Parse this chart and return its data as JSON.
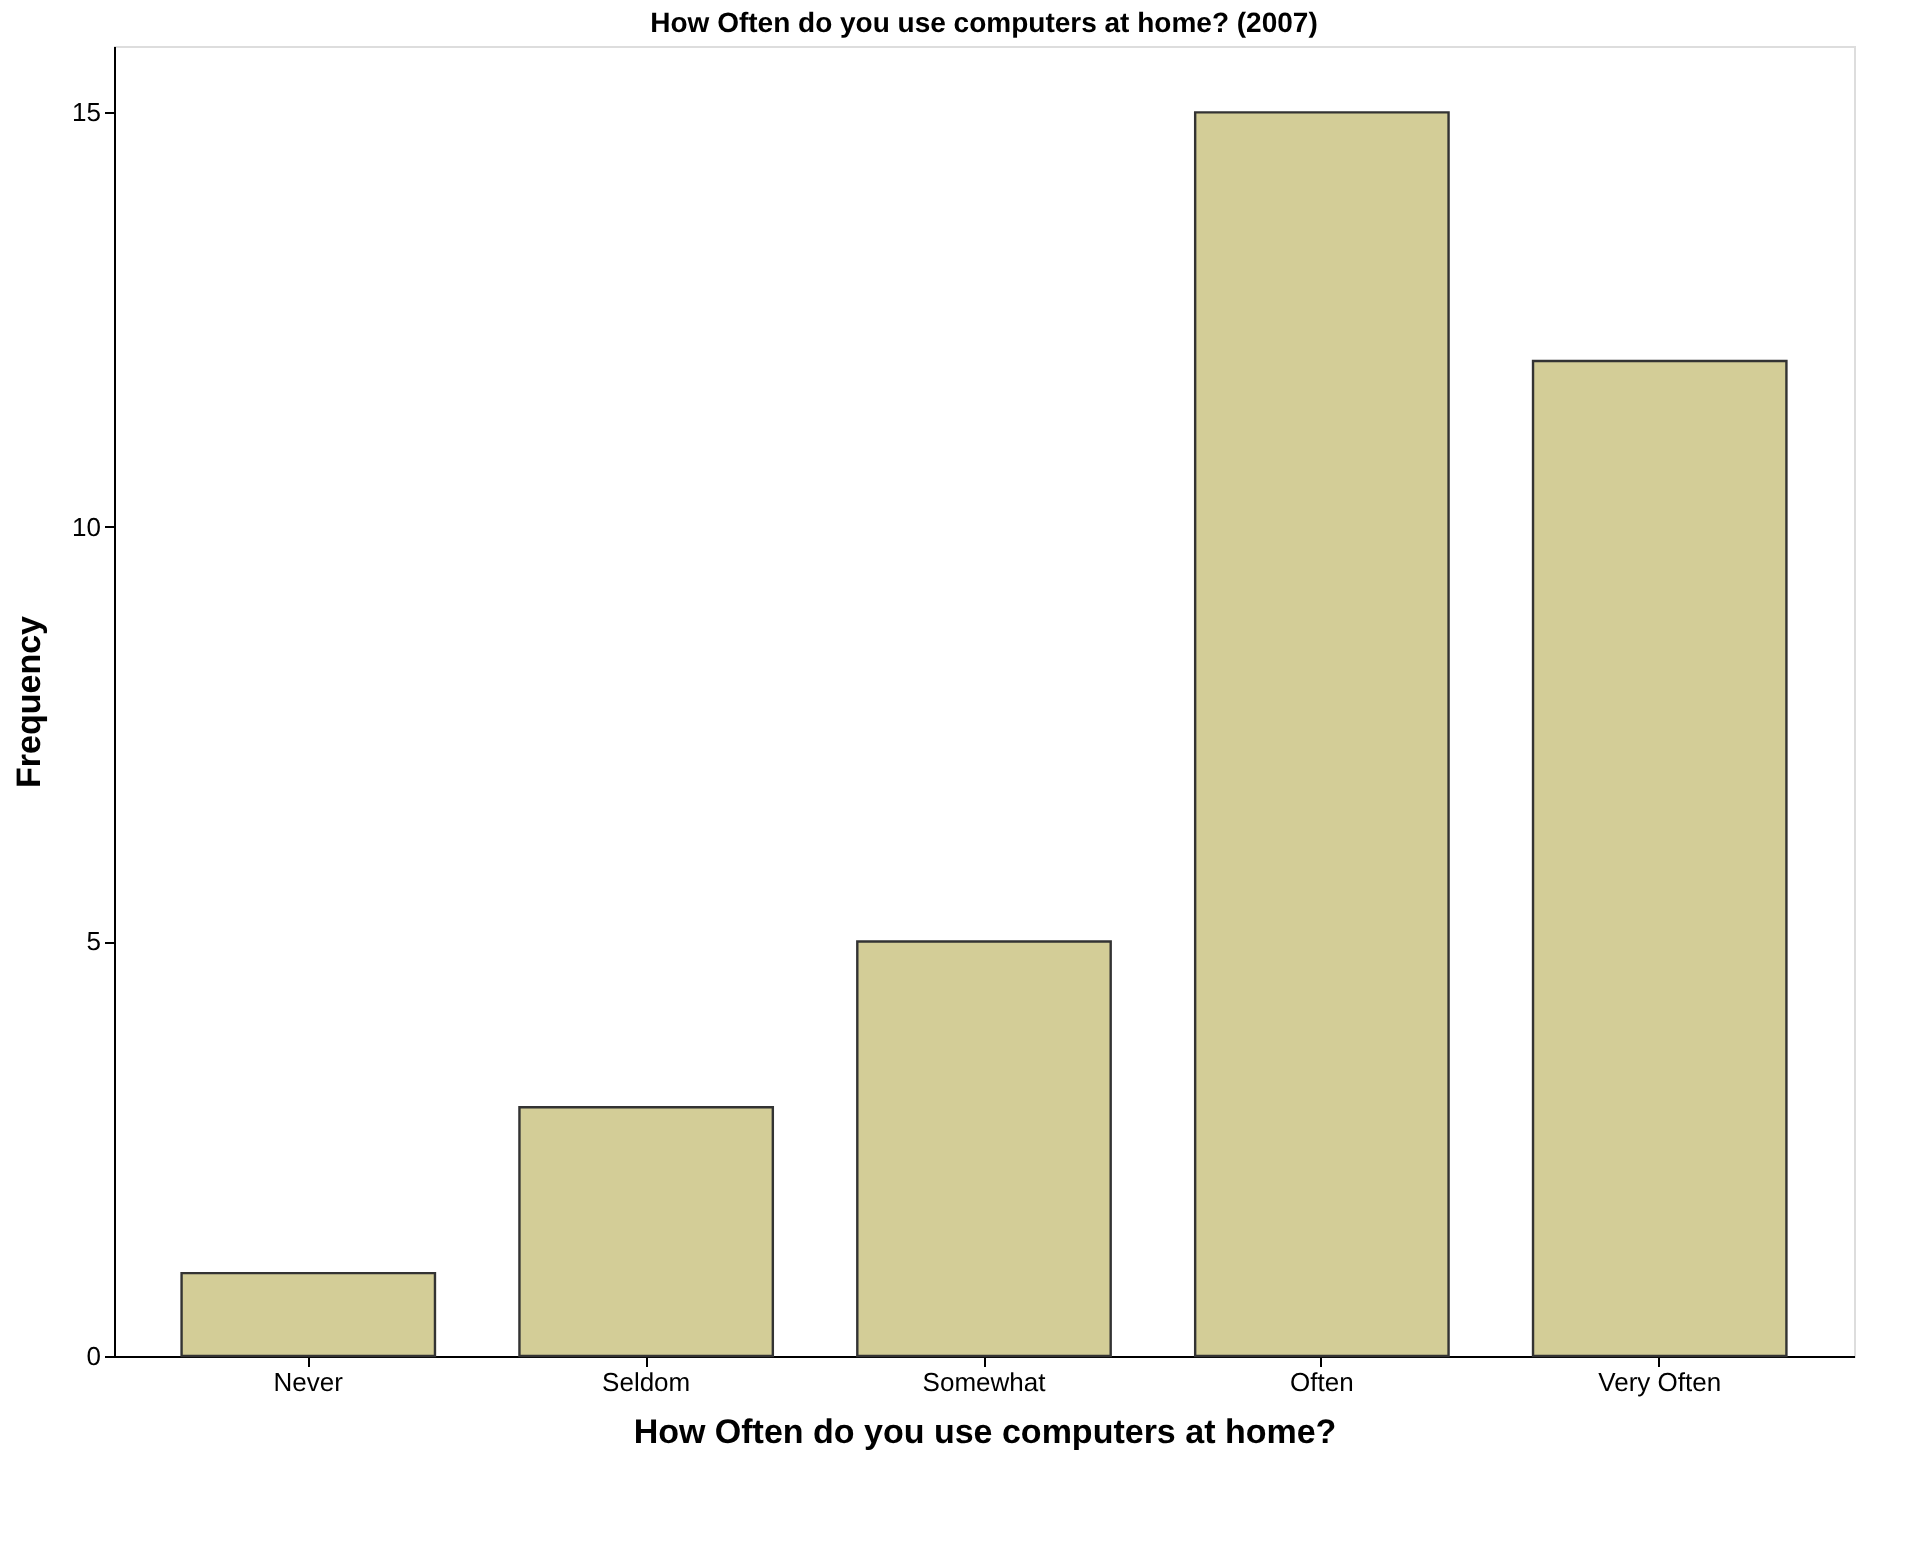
{
  "chart_data": {
    "type": "bar",
    "title": "How Often do you use computers at home? (2007)",
    "xlabel": "How Often do you use computers at home?",
    "ylabel": "Frequency",
    "categories": [
      "Never",
      "Seldom",
      "Somewhat",
      "Often",
      "Very Often"
    ],
    "values": [
      1,
      3,
      5,
      15,
      12
    ],
    "color": "#d3cd97",
    "ylim": [
      0,
      15.8
    ],
    "yticks": [
      0,
      5,
      10,
      15
    ],
    "grid": false
  }
}
